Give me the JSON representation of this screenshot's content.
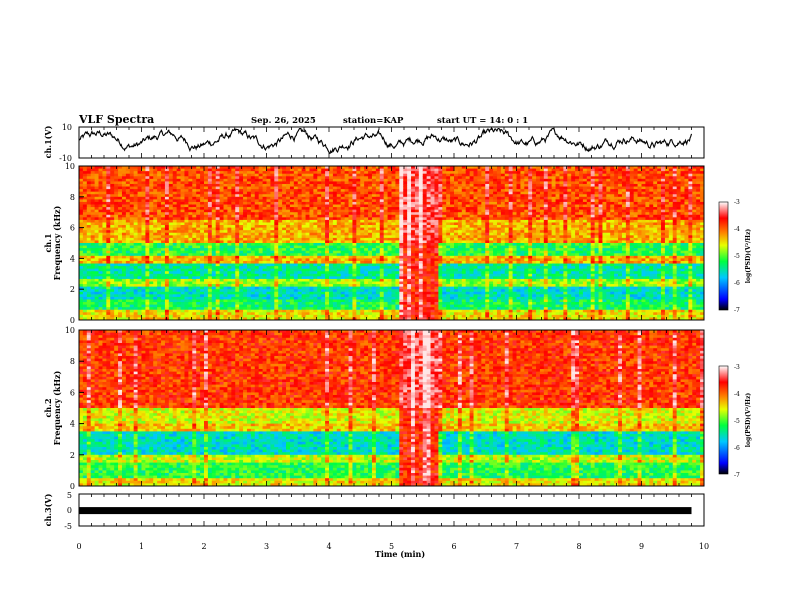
{
  "header": {
    "title": "VLF Spectra",
    "date": "Sep. 26, 2025",
    "station": "station=KAP",
    "start": "start UT = 14: 0 : 1"
  },
  "chart_data": [
    {
      "type": "line",
      "panel": "ch1-waveform",
      "ylabel": "ch.1(V)",
      "ylim": [
        -10,
        10
      ],
      "yticks": [
        "10",
        "-10"
      ],
      "x_range_min": [
        0,
        9.8
      ],
      "description_values": "noisy waveform oscillating roughly between -6 V and +8 V"
    },
    {
      "type": "heatmap",
      "panel": "ch1-spectrogram",
      "ylabel_line1": "ch.1",
      "ylabel_line2": "Frequency (kHz)",
      "ylim": [
        0,
        10
      ],
      "yticks": [
        "0",
        "2",
        "4",
        "6",
        "8",
        "10"
      ],
      "colorbar": {
        "label": "log(PSD)(V²/Hz)",
        "range": [
          -7,
          -3
        ],
        "ticks": [
          "-3",
          "-4",
          "-5",
          "-6",
          "-7"
        ]
      },
      "bands_khz": [
        {
          "from": 0.0,
          "to": 0.6,
          "level": -4.5
        },
        {
          "from": 0.6,
          "to": 1.4,
          "level": -5.3
        },
        {
          "from": 1.4,
          "to": 2.2,
          "level": -5.6
        },
        {
          "from": 2.2,
          "to": 2.6,
          "level": -4.8
        },
        {
          "from": 2.6,
          "to": 3.6,
          "level": -5.5
        },
        {
          "from": 3.6,
          "to": 4.2,
          "level": -4.3
        },
        {
          "from": 4.2,
          "to": 5.0,
          "level": -5.2
        },
        {
          "from": 5.0,
          "to": 6.5,
          "level": -4.3
        },
        {
          "from": 6.5,
          "to": 10.0,
          "level": -3.9
        }
      ],
      "burst_minutes": [
        5.1,
        5.75
      ]
    },
    {
      "type": "heatmap",
      "panel": "ch2-spectrogram",
      "ylabel_line1": "ch.2",
      "ylabel_line2": "Frequency (kHz)",
      "ylim": [
        0,
        10
      ],
      "yticks": [
        "0",
        "2",
        "4",
        "6",
        "8",
        "10"
      ],
      "colorbar": {
        "label": "log(PSD)(V²/Hz)",
        "range": [
          -7,
          -3
        ],
        "ticks": [
          "-3",
          "-4",
          "-5",
          "-6",
          "-7"
        ]
      },
      "bands_khz": [
        {
          "from": 0.0,
          "to": 0.5,
          "level": -4.5
        },
        {
          "from": 0.5,
          "to": 1.5,
          "level": -5.2
        },
        {
          "from": 1.5,
          "to": 2.0,
          "level": -4.7
        },
        {
          "from": 2.0,
          "to": 3.5,
          "level": -5.6
        },
        {
          "from": 3.5,
          "to": 4.0,
          "level": -4.4
        },
        {
          "from": 4.0,
          "to": 5.0,
          "level": -4.6
        },
        {
          "from": 5.0,
          "to": 10.0,
          "level": -3.8
        }
      ],
      "burst_minutes": [
        5.1,
        5.75
      ]
    },
    {
      "type": "line",
      "panel": "ch3-waveform",
      "ylabel": "ch.3(V)",
      "ylim": [
        -5,
        5
      ],
      "yticks": [
        "5",
        "0",
        "-5"
      ],
      "level_v": -0.2,
      "x_range_min": [
        0,
        9.8
      ]
    }
  ],
  "xaxis": {
    "label": "Time (min)",
    "range": [
      0,
      10
    ],
    "ticks": [
      "0",
      "1",
      "2",
      "3",
      "4",
      "5",
      "6",
      "7",
      "8",
      "9",
      "10"
    ]
  }
}
